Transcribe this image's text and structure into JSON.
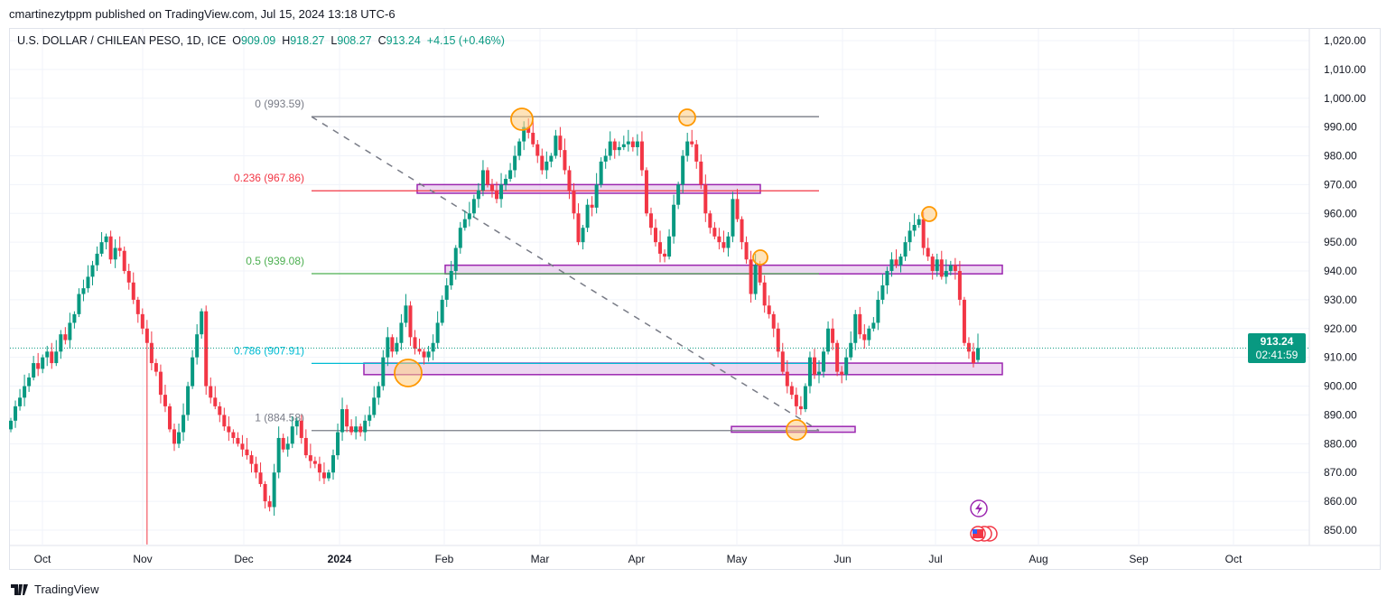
{
  "header": {
    "published": "cmartinezytppm published on TradingView.com, Jul 15, 2024 13:18 UTC-6"
  },
  "legend": {
    "symbol": "U.S. DOLLAR / CHILEAN PESO, 1D, ICE",
    "o_label": "O",
    "o": "909.09",
    "h_label": "H",
    "h": "918.27",
    "l_label": "L",
    "l": "908.27",
    "c_label": "C",
    "c": "913.24",
    "change": "+4.15 (+0.46%)"
  },
  "price_tag": {
    "price": "913.24",
    "countdown": "02:41:59"
  },
  "footer": {
    "brand": "TradingView"
  },
  "colors": {
    "up": "#089981",
    "down": "#f23645",
    "box_fill": "#e1bee7",
    "box_stroke": "#9c27b0",
    "circle": "#ff9800",
    "fib0": "#787b86",
    "fib236": "#f23645",
    "fib5": "#4caf50",
    "fib786": "#00bcd4",
    "fib1": "#787b86"
  },
  "chart_data": {
    "type": "candlestick",
    "title": "U.S. DOLLAR / CHILEAN PESO, 1D, ICE",
    "ylim": [
      845,
      1025
    ],
    "y_ticks": [
      850,
      860,
      870,
      880,
      890,
      900,
      910,
      920,
      930,
      940,
      950,
      960,
      970,
      980,
      990,
      1000,
      1010,
      1020
    ],
    "y_tick_labels": [
      "850.00",
      "860.00",
      "870.00",
      "880.00",
      "890.00",
      "900.00",
      "910.00",
      "920.00",
      "930.00",
      "940.00",
      "950.00",
      "960.00",
      "970.00",
      "980.00",
      "990.00",
      "1,000.00",
      "1,010.00",
      "1,020.00"
    ],
    "x_ticks": [
      "Oct",
      "Nov",
      "Dec",
      "2024",
      "Feb",
      "Mar",
      "Apr",
      "May",
      "Jun",
      "Jul",
      "Aug",
      "Sep",
      "Oct"
    ],
    "grid": true,
    "closes": [
      888,
      893,
      896,
      900,
      903,
      908,
      906,
      910,
      912,
      908,
      912,
      918,
      916,
      922,
      925,
      932,
      934,
      938,
      942,
      946,
      950,
      952,
      944,
      948,
      947,
      940,
      936,
      930,
      925,
      920,
      915,
      908,
      905,
      897,
      893,
      885,
      880,
      884,
      890,
      900,
      910,
      918,
      926,
      900,
      896,
      893,
      890,
      886,
      884,
      882,
      880,
      878,
      876,
      873,
      870,
      866,
      860,
      858,
      870,
      882,
      878,
      880,
      886,
      888,
      882,
      876,
      874,
      873,
      870,
      868,
      870,
      876,
      884,
      892,
      886,
      884,
      886,
      884,
      888,
      890,
      896,
      900,
      910,
      917,
      912,
      915,
      922,
      928,
      917,
      913,
      912,
      910,
      912,
      915,
      922,
      930,
      935,
      940,
      948,
      955,
      958,
      960,
      965,
      968,
      975,
      970,
      968,
      965,
      970,
      972,
      975,
      980,
      985,
      990,
      988,
      984,
      980,
      975,
      978,
      980,
      987,
      982,
      975,
      968,
      960,
      950,
      955,
      963,
      962,
      970,
      978,
      980,
      985,
      982,
      983,
      984,
      985,
      983,
      985,
      975,
      960,
      955,
      950,
      946,
      945,
      952,
      963,
      970,
      980,
      985,
      984,
      978,
      970,
      960,
      955,
      952,
      950,
      948,
      952,
      965,
      958,
      950,
      944,
      932,
      942,
      936,
      928,
      925,
      920,
      912,
      905,
      900,
      897,
      893,
      892,
      900,
      910,
      904,
      905,
      912,
      920,
      915,
      905,
      904,
      910,
      915,
      925,
      918,
      916,
      920,
      922,
      930,
      935,
      940,
      944,
      942,
      945,
      950,
      954,
      956,
      958,
      948,
      945,
      940,
      944,
      938,
      940,
      942,
      940,
      930,
      915,
      912,
      908,
      913.24
    ],
    "last_candle": {
      "open": 909.09,
      "high": 918.27,
      "low": 908.27,
      "close": 913.24
    },
    "notable_wick": {
      "month": "Nov",
      "low": 845
    },
    "fib_levels": [
      {
        "label": "0 (993.59)",
        "value": 993.59
      },
      {
        "label": "0.236 (967.86)",
        "value": 967.86
      },
      {
        "label": "0.5 (939.08)",
        "value": 939.08
      },
      {
        "label": "0.786 (907.91)",
        "value": 907.91
      },
      {
        "label": "1 (884.58)",
        "value": 884.58
      }
    ],
    "zones": [
      [
        967,
        970
      ],
      [
        939,
        942
      ],
      [
        904,
        908
      ],
      [
        884,
        886
      ]
    ],
    "current_price": 913.24
  }
}
